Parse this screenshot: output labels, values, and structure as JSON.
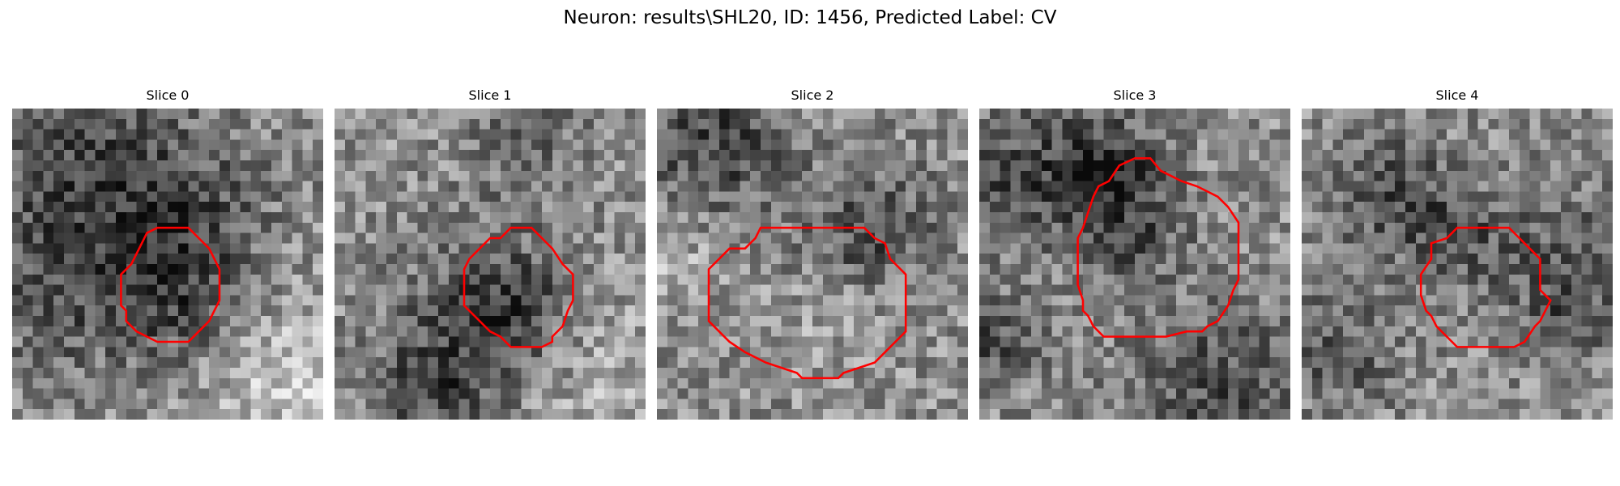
{
  "figure": {
    "title": "Neuron: results\\SHL20, ID: 1456, Predicted Label: CV"
  },
  "contour_color": "#ff0000",
  "slices": [
    {
      "label": "Slice 0"
    },
    {
      "label": "Slice 1"
    },
    {
      "label": "Slice 2"
    },
    {
      "label": "Slice 3"
    },
    {
      "label": "Slice 4"
    }
  ]
}
